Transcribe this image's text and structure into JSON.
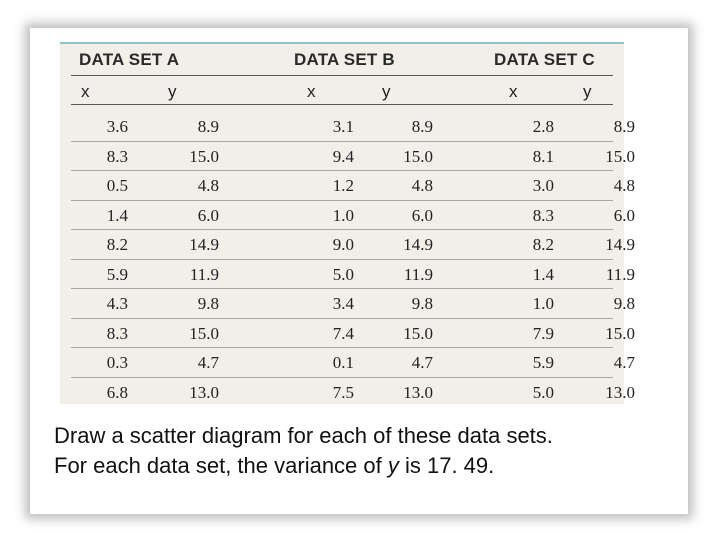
{
  "table": {
    "headers": [
      "DATA SET A",
      "DATA SET B",
      "DATA SET C"
    ],
    "subheaders": [
      "x",
      "y",
      "x",
      "y",
      "x",
      "y"
    ],
    "rows": [
      [
        "3.6",
        "8.9",
        "3.1",
        "8.9",
        "2.8",
        "8.9"
      ],
      [
        "8.3",
        "15.0",
        "9.4",
        "15.0",
        "8.1",
        "15.0"
      ],
      [
        "0.5",
        "4.8",
        "1.2",
        "4.8",
        "3.0",
        "4.8"
      ],
      [
        "1.4",
        "6.0",
        "1.0",
        "6.0",
        "8.3",
        "6.0"
      ],
      [
        "8.2",
        "14.9",
        "9.0",
        "14.9",
        "8.2",
        "14.9"
      ],
      [
        "5.9",
        "11.9",
        "5.0",
        "11.9",
        "1.4",
        "11.9"
      ],
      [
        "4.3",
        "9.8",
        "3.4",
        "9.8",
        "1.0",
        "9.8"
      ],
      [
        "8.3",
        "15.0",
        "7.4",
        "15.0",
        "7.9",
        "15.0"
      ],
      [
        "0.3",
        "4.7",
        "0.1",
        "4.7",
        "5.9",
        "4.7"
      ],
      [
        "6.8",
        "13.0",
        "7.5",
        "13.0",
        "5.0",
        "13.0"
      ]
    ]
  },
  "caption": {
    "line1": "Draw a scatter diagram for each of these data sets.",
    "line2_before": "For each data set, the variance of ",
    "line2_var": "y",
    "line2_after": " is 17. 49."
  },
  "colors": {
    "panel_bg": "#f2efe9",
    "accent_rule": "#8fc4cc"
  }
}
